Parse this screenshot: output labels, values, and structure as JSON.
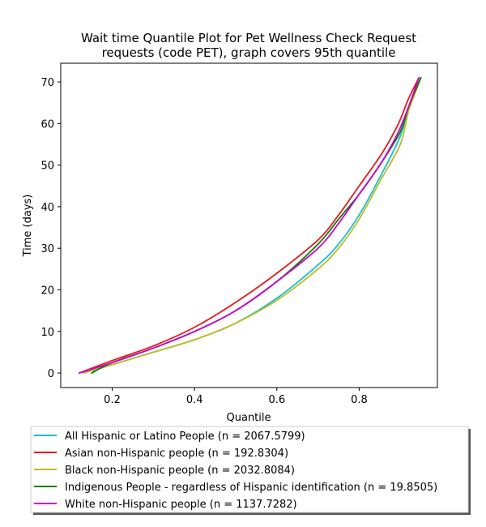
{
  "chart_data": {
    "type": "line",
    "title": "Wait time Quantile Plot for Pet Wellness Check Request requests (code PET), graph covers 95th quantile",
    "title_lines": [
      "Wait time Quantile Plot for Pet Wellness Check Request",
      "requests (code PET), graph covers 95th quantile"
    ],
    "xlabel": "Quantile",
    "ylabel": "Time (days)",
    "xlim": [
      0.075,
      0.99
    ],
    "ylim": [
      -3.5,
      74.5
    ],
    "xticks": [
      0.2,
      0.4,
      0.6,
      0.8
    ],
    "xtick_labels": [
      "0.2",
      "0.4",
      "0.6",
      "0.8"
    ],
    "yticks": [
      0,
      10,
      20,
      30,
      40,
      50,
      60,
      70
    ],
    "ytick_labels": [
      "0",
      "10",
      "20",
      "30",
      "40",
      "50",
      "60",
      "70"
    ],
    "grid": false,
    "legend_position": "below",
    "series": [
      {
        "name": "All Hispanic or Latino People (n = 2067.5799)",
        "color": "#17becf",
        "x": [
          0.13,
          0.2,
          0.3,
          0.4,
          0.5,
          0.6,
          0.7,
          0.75,
          0.8,
          0.85,
          0.9,
          0.92,
          0.95
        ],
        "y": [
          0,
          2,
          5,
          8,
          12,
          18,
          26,
          31,
          38,
          47,
          57,
          64,
          71
        ]
      },
      {
        "name": "Asian non-Hispanic people (n = 192.8304)",
        "color": "#e41a1c",
        "x": [
          0.12,
          0.2,
          0.3,
          0.4,
          0.5,
          0.6,
          0.7,
          0.75,
          0.8,
          0.85,
          0.88,
          0.9,
          0.92,
          0.945
        ],
        "y": [
          0,
          3,
          6.5,
          11,
          17,
          24,
          32,
          38,
          45,
          52,
          57,
          61,
          66,
          71
        ]
      },
      {
        "name": "Black non-Hispanic people (n = 2032.8084)",
        "color": "#bcbd22",
        "x": [
          0.13,
          0.2,
          0.3,
          0.4,
          0.5,
          0.6,
          0.7,
          0.75,
          0.8,
          0.85,
          0.9,
          0.92,
          0.95
        ],
        "y": [
          0,
          2,
          5,
          8,
          12,
          17.5,
          25,
          30,
          37,
          46,
          55,
          63,
          71
        ]
      },
      {
        "name": "Indigenous People - regardless of Hispanic identification (n = 19.8505)",
        "color": "#008000",
        "x": [
          0.15,
          0.2,
          0.3,
          0.4,
          0.5,
          0.6,
          0.7,
          0.75,
          0.8,
          0.85,
          0.9,
          0.92,
          0.95
        ],
        "y": [
          0,
          2.5,
          6,
          10,
          15,
          22,
          31,
          37,
          43,
          50,
          58,
          64,
          71
        ]
      },
      {
        "name": "White non-Hispanic people (n = 1137.7282)",
        "color": "#cc00cc",
        "x": [
          0.12,
          0.2,
          0.3,
          0.4,
          0.5,
          0.6,
          0.7,
          0.75,
          0.8,
          0.85,
          0.88,
          0.9,
          0.92,
          0.945
        ],
        "y": [
          0,
          2.5,
          6,
          10,
          15,
          22,
          30,
          36,
          43,
          50,
          55,
          59,
          64,
          71
        ]
      }
    ]
  }
}
